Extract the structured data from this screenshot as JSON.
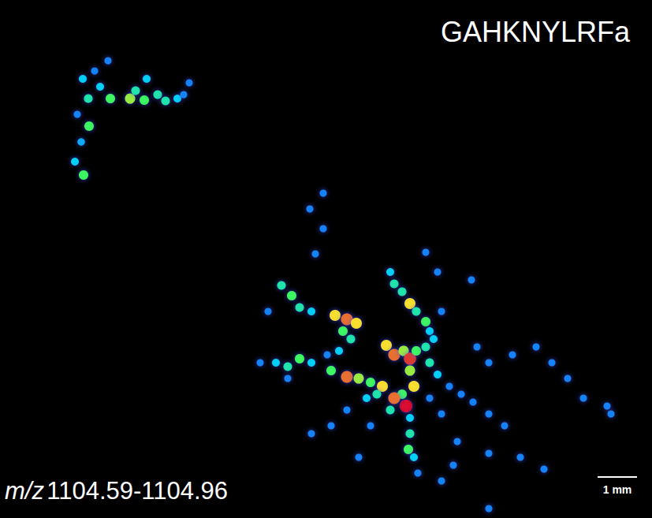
{
  "chart_data": {
    "type": "scatter",
    "title": "GAHKNYLRFa",
    "mass_range": {
      "label": "m/z",
      "text": "1104.59-1104.96"
    },
    "scale_bar": {
      "length": 1,
      "label": "1 mm"
    },
    "xlim": [
      0,
      16.54
    ],
    "ylim": [
      0,
      13.14
    ],
    "zlim": [
      0,
      1
    ],
    "tick_labels": false,
    "grid": false,
    "points": [
      [
        2.74,
        11.6,
        0.3
      ],
      [
        2.1,
        11.14,
        0.4
      ],
      [
        2.24,
        10.64,
        0.5
      ],
      [
        1.96,
        10.24,
        0.3
      ],
      [
        2.26,
        9.94,
        0.6
      ],
      [
        2.06,
        9.54,
        0.35
      ],
      [
        1.9,
        9.04,
        0.4
      ],
      [
        2.12,
        8.7,
        0.6
      ],
      [
        2.8,
        10.64,
        0.6
      ],
      [
        3.3,
        10.64,
        0.7
      ],
      [
        3.44,
        10.84,
        0.5
      ],
      [
        3.72,
        11.14,
        0.4
      ],
      [
        3.66,
        10.6,
        0.6
      ],
      [
        4.0,
        10.74,
        0.5
      ],
      [
        4.2,
        10.58,
        0.5
      ],
      [
        4.5,
        10.64,
        0.4
      ],
      [
        4.66,
        10.74,
        0.3
      ],
      [
        4.8,
        11.04,
        0.3
      ],
      [
        2.54,
        10.94,
        0.4
      ],
      [
        2.4,
        11.34,
        0.3
      ],
      [
        8.2,
        8.24,
        0.3
      ],
      [
        7.86,
        7.84,
        0.3
      ],
      [
        8.2,
        7.34,
        0.3
      ],
      [
        8.0,
        6.7,
        0.3
      ],
      [
        7.14,
        5.9,
        0.5
      ],
      [
        7.4,
        5.64,
        0.6
      ],
      [
        7.6,
        5.34,
        0.5
      ],
      [
        7.9,
        5.24,
        0.4
      ],
      [
        8.5,
        5.14,
        0.8
      ],
      [
        8.8,
        5.04,
        0.9
      ],
      [
        9.04,
        4.94,
        0.8
      ],
      [
        8.7,
        4.74,
        0.6
      ],
      [
        8.9,
        4.54,
        0.5
      ],
      [
        8.6,
        4.24,
        0.4
      ],
      [
        8.3,
        4.14,
        0.3
      ],
      [
        9.9,
        6.24,
        0.4
      ],
      [
        10.0,
        5.94,
        0.5
      ],
      [
        10.2,
        5.74,
        0.5
      ],
      [
        10.4,
        5.44,
        0.8
      ],
      [
        10.56,
        5.24,
        0.5
      ],
      [
        10.8,
        4.98,
        0.6
      ],
      [
        10.9,
        4.74,
        0.4
      ],
      [
        11.2,
        5.24,
        0.3
      ],
      [
        11.96,
        6.04,
        0.3
      ],
      [
        9.8,
        4.38,
        0.8
      ],
      [
        10.0,
        4.14,
        0.9
      ],
      [
        10.24,
        4.24,
        0.7
      ],
      [
        10.4,
        4.04,
        0.95
      ],
      [
        10.56,
        4.24,
        0.6
      ],
      [
        10.8,
        4.34,
        0.5
      ],
      [
        11.0,
        4.54,
        0.4
      ],
      [
        10.9,
        3.94,
        0.5
      ],
      [
        10.4,
        3.74,
        0.7
      ],
      [
        10.5,
        3.34,
        0.8
      ],
      [
        10.2,
        3.14,
        0.6
      ],
      [
        10.3,
        2.84,
        1.0
      ],
      [
        10.0,
        3.04,
        0.9
      ],
      [
        9.9,
        2.74,
        0.5
      ],
      [
        10.4,
        2.54,
        0.4
      ],
      [
        10.4,
        2.14,
        0.5
      ],
      [
        10.36,
        1.74,
        0.6
      ],
      [
        10.5,
        1.54,
        0.4
      ],
      [
        10.6,
        1.14,
        0.3
      ],
      [
        7.0,
        3.94,
        0.4
      ],
      [
        7.3,
        3.84,
        0.5
      ],
      [
        7.6,
        4.04,
        0.6
      ],
      [
        7.9,
        3.94,
        0.4
      ],
      [
        8.4,
        3.74,
        0.6
      ],
      [
        8.8,
        3.58,
        0.9
      ],
      [
        9.1,
        3.54,
        0.7
      ],
      [
        9.4,
        3.44,
        0.6
      ],
      [
        9.7,
        3.34,
        0.8
      ],
      [
        9.56,
        3.14,
        0.5
      ],
      [
        9.3,
        3.04,
        0.4
      ],
      [
        11.1,
        3.64,
        0.4
      ],
      [
        11.4,
        3.34,
        0.3
      ],
      [
        11.7,
        3.14,
        0.3
      ],
      [
        12.0,
        2.94,
        0.3
      ],
      [
        12.4,
        2.64,
        0.3
      ],
      [
        12.8,
        2.34,
        0.3
      ],
      [
        13.2,
        1.54,
        0.3
      ],
      [
        13.8,
        1.24,
        0.3
      ],
      [
        12.4,
        1.64,
        0.3
      ],
      [
        11.6,
        1.94,
        0.3
      ],
      [
        11.2,
        2.64,
        0.3
      ],
      [
        10.9,
        3.04,
        0.3
      ],
      [
        12.1,
        4.34,
        0.3
      ],
      [
        12.4,
        3.94,
        0.3
      ],
      [
        13.0,
        4.14,
        0.3
      ],
      [
        13.6,
        4.34,
        0.3
      ],
      [
        14.0,
        3.94,
        0.3
      ],
      [
        14.4,
        3.54,
        0.3
      ],
      [
        14.8,
        3.04,
        0.3
      ],
      [
        15.4,
        2.84,
        0.3
      ],
      [
        15.5,
        2.64,
        0.3
      ],
      [
        11.5,
        1.34,
        0.3
      ],
      [
        11.2,
        0.94,
        0.3
      ],
      [
        12.4,
        0.24,
        0.3
      ],
      [
        6.8,
        5.24,
        0.3
      ],
      [
        6.6,
        3.94,
        0.3
      ],
      [
        7.3,
        3.54,
        0.3
      ],
      [
        8.8,
        2.74,
        0.3
      ],
      [
        8.4,
        2.34,
        0.3
      ],
      [
        7.9,
        2.14,
        0.3
      ],
      [
        9.4,
        2.34,
        0.3
      ],
      [
        9.1,
        1.54,
        0.3
      ],
      [
        10.8,
        6.74,
        0.3
      ],
      [
        11.1,
        6.24,
        0.3
      ]
    ]
  }
}
